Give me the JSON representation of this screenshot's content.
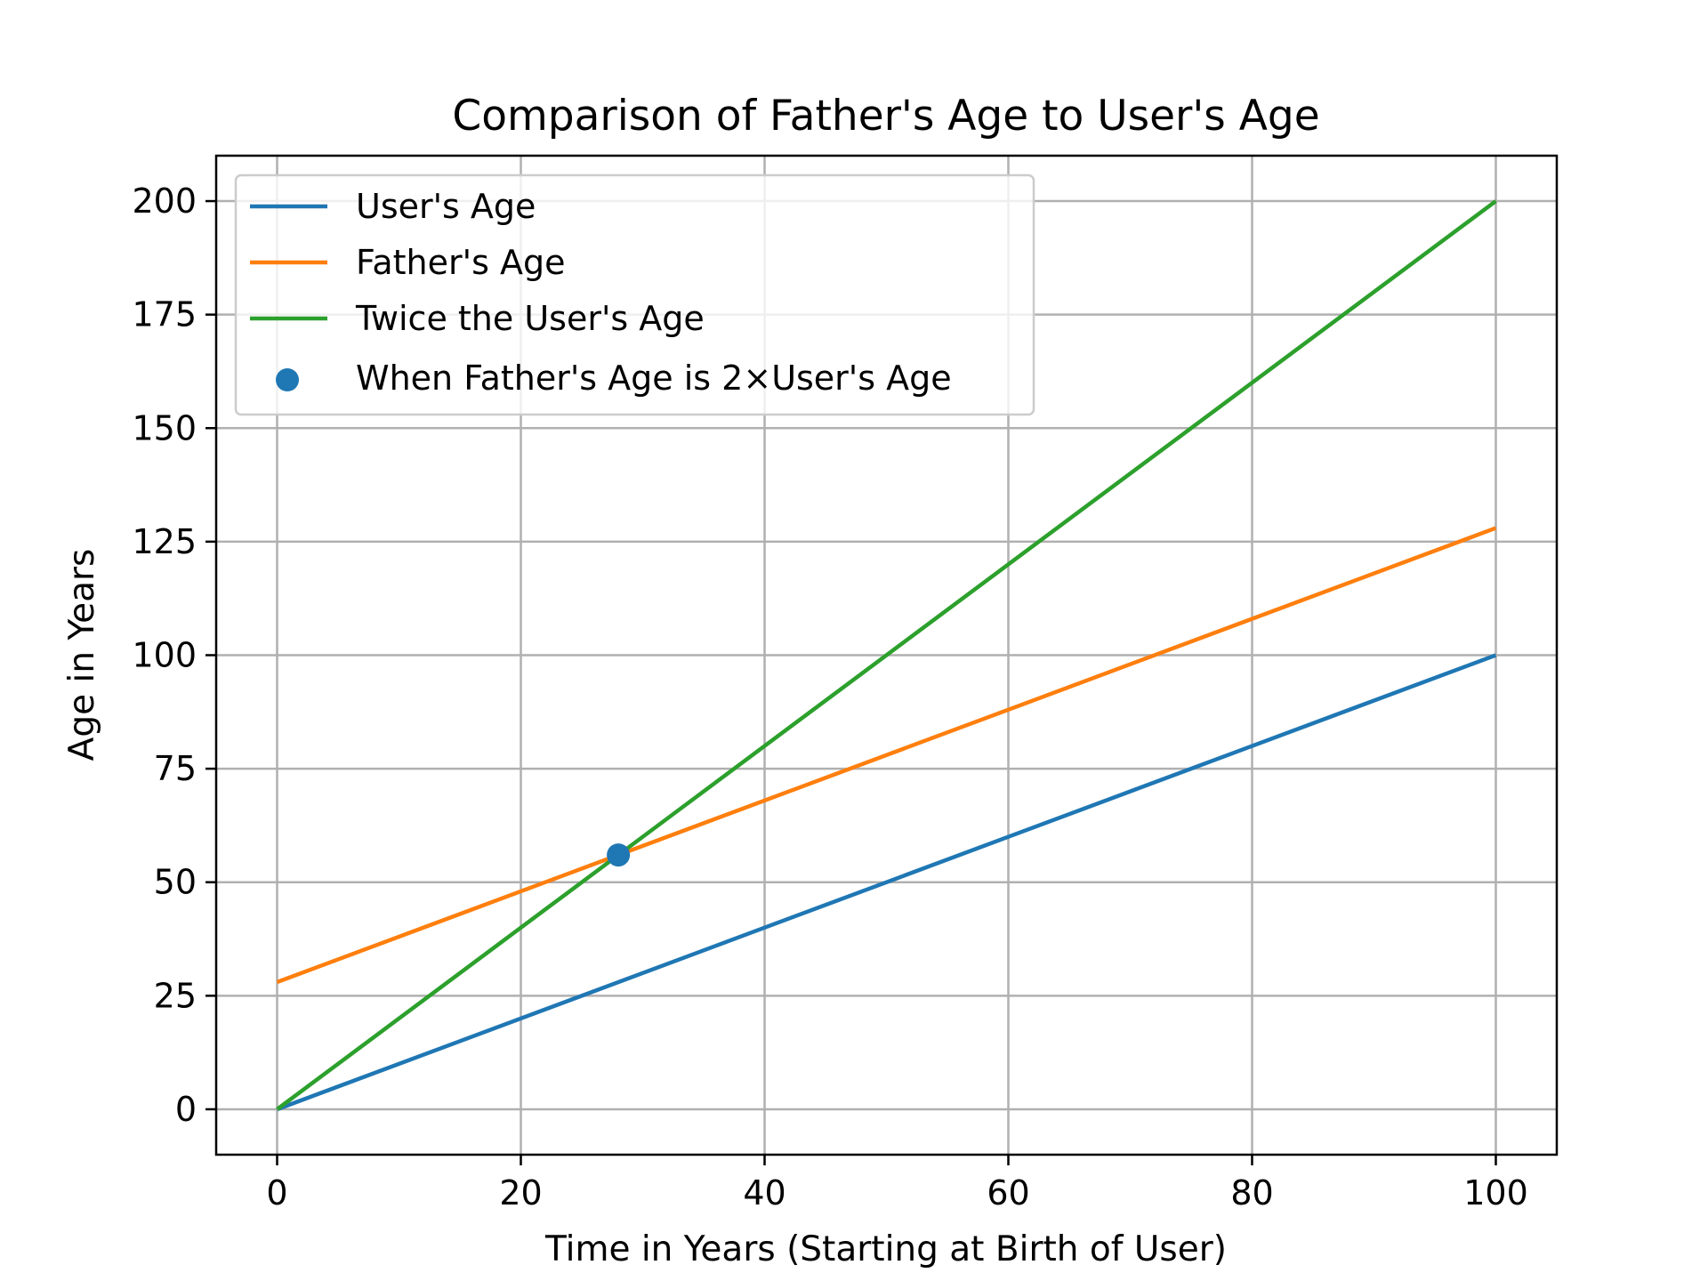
{
  "chart_data": {
    "type": "line",
    "title": "Comparison of Father's Age to User's Age",
    "xlabel": "Time in Years (Starting at Birth of User)",
    "ylabel": "Age in Years",
    "xlim": [
      -5,
      105
    ],
    "ylim": [
      -10,
      210
    ],
    "x_ticks": [
      0,
      20,
      40,
      60,
      80,
      100
    ],
    "y_ticks": [
      0,
      25,
      50,
      75,
      100,
      125,
      150,
      175,
      200
    ],
    "grid": true,
    "legend_position": "top-left",
    "series": [
      {
        "name": "User's Age",
        "color": "#1f77b4",
        "x": [
          0,
          100
        ],
        "y": [
          0,
          100
        ]
      },
      {
        "name": "Father's Age",
        "color": "#ff7f0e",
        "x": [
          0,
          100
        ],
        "y": [
          28,
          128
        ]
      },
      {
        "name": "Twice the User's Age",
        "color": "#2ca02c",
        "x": [
          0,
          100
        ],
        "y": [
          0,
          200
        ]
      }
    ],
    "points": [
      {
        "name": "When Father's Age is 2×User's Age",
        "color": "#1f77b4",
        "x": 28,
        "y": 56
      }
    ]
  }
}
